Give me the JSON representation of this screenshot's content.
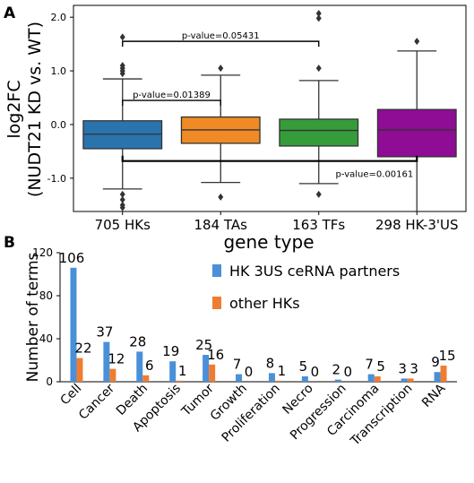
{
  "panel_a_label": "A",
  "panel_b_label": "B",
  "chart_data": [
    {
      "type": "box",
      "panel": "A",
      "xlabel": "gene type",
      "ylabel_line1": "log2FC",
      "ylabel_line2": "(NUDT21 KD vs. WT)",
      "ylim": [
        -1.62,
        2.22
      ],
      "yticks": [
        2.0,
        1.0,
        0.0,
        -1.0
      ],
      "ytick_labels": [
        "2.0",
        "1.0",
        "0.0",
        "-1.0"
      ],
      "categories": [
        "705 HKs",
        "184 TAs",
        "163 TFs",
        "298 HK-3'US"
      ],
      "colors": [
        "#2a74ae",
        "#f08a24",
        "#369c3a",
        "#8e0d94"
      ],
      "boxes": [
        {
          "q1": -0.45,
          "median": -0.18,
          "q3": 0.07,
          "whisker_low": -1.2,
          "whisker_high": 0.85,
          "fliers": [
            1.63,
            1.1,
            1.05,
            1.0,
            0.95,
            -1.3,
            -1.4,
            -1.5,
            -1.55
          ]
        },
        {
          "q1": -0.35,
          "median": -0.1,
          "q3": 0.14,
          "whisker_low": -1.08,
          "whisker_high": 0.92,
          "fliers": [
            1.05,
            -1.35
          ]
        },
        {
          "q1": -0.4,
          "median": -0.11,
          "q3": 0.1,
          "whisker_low": -1.1,
          "whisker_high": 0.82,
          "fliers": [
            2.07,
            1.98,
            1.05,
            -1.3
          ]
        },
        {
          "q1": -0.6,
          "median": -0.1,
          "q3": 0.28,
          "whisker_low": -1.62,
          "whisker_high": 1.37,
          "fliers": [
            1.55
          ]
        }
      ],
      "annotations": [
        {
          "text": "p-value=0.05431",
          "from": 0,
          "to": 2,
          "y": 1.55
        },
        {
          "text": "p-value=0.01389",
          "from": 0,
          "to": 1,
          "y": 0.45
        },
        {
          "text": "p-value=0.00161",
          "from": 0,
          "to": 3,
          "y": -0.68
        }
      ]
    },
    {
      "type": "bar",
      "panel": "B",
      "ylabel": "Number of terms",
      "ylim": [
        0,
        120
      ],
      "yticks": [
        0,
        40,
        80,
        120
      ],
      "ytick_labels": [
        "0",
        "40",
        "80",
        "120"
      ],
      "categories": [
        "Cell",
        "Cancer",
        "Death",
        "Apoptosis",
        "Tumor",
        "Growth",
        "Proliferation",
        "Necro",
        "Progression",
        "Carcinoma",
        "Transcription",
        "RNA"
      ],
      "series": [
        {
          "name": "HK 3US ceRNA partners",
          "color": "#4a90d9",
          "values": [
            106,
            37,
            28,
            19,
            25,
            7,
            8,
            5,
            2,
            7,
            3,
            9
          ]
        },
        {
          "name": "other HKs",
          "color": "#ee7d31",
          "values": [
            22,
            12,
            6,
            1,
            16,
            0,
            1,
            0,
            0,
            5,
            3,
            15
          ]
        }
      ],
      "legend_position": "top-right"
    }
  ]
}
